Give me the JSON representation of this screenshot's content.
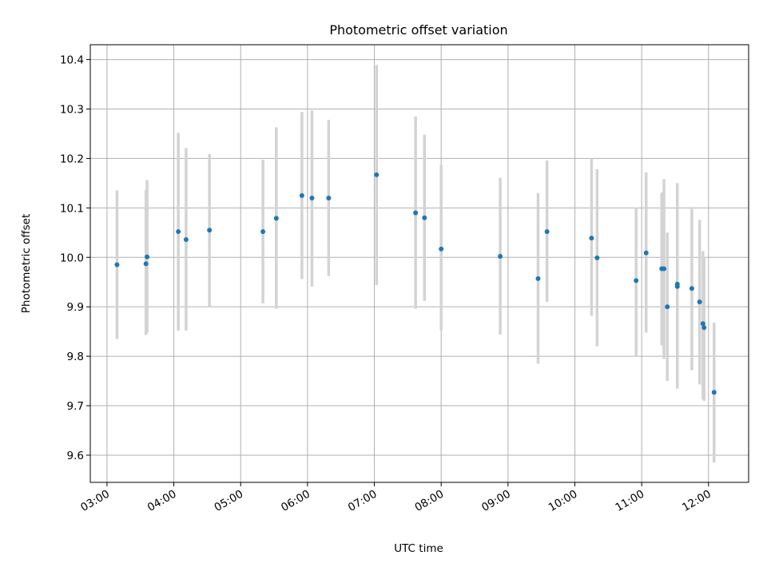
{
  "chart_data": {
    "type": "scatter",
    "title": "Photometric offset variation",
    "xlabel": "UTC time",
    "ylabel": "Photometric offset",
    "x_ticks": [
      "03:00",
      "04:00",
      "05:00",
      "06:00",
      "07:00",
      "08:00",
      "09:00",
      "10:00",
      "11:00",
      "12:00"
    ],
    "y_ticks": [
      "9.6",
      "9.7",
      "9.8",
      "9.9",
      "10.0",
      "10.1",
      "10.2",
      "10.3",
      "10.4"
    ],
    "xlim": [
      "02:45",
      "12:36"
    ],
    "ylim": [
      9.545,
      10.43
    ],
    "grid": true,
    "colors": {
      "point": "#1f77b4",
      "errorbar": "#d3d3d3",
      "grid": "#b0b0b0"
    },
    "series": [
      {
        "points": [
          {
            "x": "03:09",
            "y": 9.985,
            "lo": 9.835,
            "hi": 10.135
          },
          {
            "x": "03:35",
            "y": 9.987,
            "lo": 9.843,
            "hi": 10.136
          },
          {
            "x": "03:36",
            "y": 10.001,
            "lo": 9.848,
            "hi": 10.156
          },
          {
            "x": "04:04",
            "y": 10.052,
            "lo": 9.852,
            "hi": 10.252
          },
          {
            "x": "04:11",
            "y": 10.036,
            "lo": 9.852,
            "hi": 10.221
          },
          {
            "x": "04:32",
            "y": 10.055,
            "lo": 9.9,
            "hi": 10.209
          },
          {
            "x": "05:20",
            "y": 10.052,
            "lo": 9.907,
            "hi": 10.197
          },
          {
            "x": "05:32",
            "y": 10.079,
            "lo": 9.896,
            "hi": 10.263
          },
          {
            "x": "05:55",
            "y": 10.125,
            "lo": 9.956,
            "hi": 10.294
          },
          {
            "x": "06:04",
            "y": 10.12,
            "lo": 9.941,
            "hi": 10.297
          },
          {
            "x": "06:19",
            "y": 10.12,
            "lo": 9.962,
            "hi": 10.278
          },
          {
            "x": "07:02",
            "y": 10.167,
            "lo": 9.944,
            "hi": 10.389
          },
          {
            "x": "07:37",
            "y": 10.09,
            "lo": 9.896,
            "hi": 10.285
          },
          {
            "x": "07:45",
            "y": 10.08,
            "lo": 9.912,
            "hi": 10.248
          },
          {
            "x": "08:00",
            "y": 10.017,
            "lo": 9.852,
            "hi": 10.187
          },
          {
            "x": "08:53",
            "y": 10.002,
            "lo": 9.844,
            "hi": 10.161
          },
          {
            "x": "09:27",
            "y": 9.957,
            "lo": 9.785,
            "hi": 10.13
          },
          {
            "x": "09:35",
            "y": 10.052,
            "lo": 9.91,
            "hi": 10.196
          },
          {
            "x": "10:15",
            "y": 10.039,
            "lo": 9.882,
            "hi": 10.2
          },
          {
            "x": "10:20",
            "y": 9.999,
            "lo": 9.82,
            "hi": 10.178
          },
          {
            "x": "10:55",
            "y": 9.953,
            "lo": 9.8,
            "hi": 10.101
          },
          {
            "x": "11:04",
            "y": 10.009,
            "lo": 9.848,
            "hi": 10.172
          },
          {
            "x": "11:18",
            "y": 9.977,
            "lo": 9.822,
            "hi": 10.131
          },
          {
            "x": "11:20",
            "y": 9.977,
            "lo": 9.795,
            "hi": 10.158
          },
          {
            "x": "11:23",
            "y": 9.9,
            "lo": 9.75,
            "hi": 10.05
          },
          {
            "x": "11:32",
            "y": 9.946,
            "lo": 9.735,
            "hi": 10.15
          },
          {
            "x": "11:32",
            "y": 9.941,
            "lo": 9.735,
            "hi": 10.15
          },
          {
            "x": "11:45",
            "y": 9.937,
            "lo": 9.772,
            "hi": 10.098
          },
          {
            "x": "11:52",
            "y": 9.91,
            "lo": 9.743,
            "hi": 10.076
          },
          {
            "x": "11:55",
            "y": 9.866,
            "lo": 9.713,
            "hi": 10.013
          },
          {
            "x": "11:56",
            "y": 9.858,
            "lo": 9.71,
            "hi": 10.0
          },
          {
            "x": "12:05",
            "y": 9.727,
            "lo": 9.585,
            "hi": 9.868
          }
        ]
      }
    ]
  }
}
